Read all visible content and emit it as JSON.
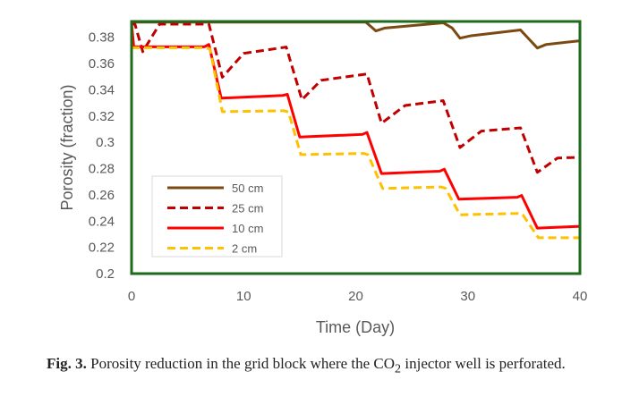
{
  "chart_data": {
    "type": "line",
    "xlabel": "Time (Day)",
    "ylabel": "Porosity (fraction)",
    "xlim": [
      0,
      40
    ],
    "ylim": [
      0.2,
      0.392
    ],
    "x_ticks": [
      "0",
      "10",
      "20",
      "30",
      "40"
    ],
    "y_ticks": [
      "0.2",
      "0.22",
      "0.24",
      "0.26",
      "0.28",
      "0.3",
      "0.32",
      "0.34",
      "0.36",
      "0.38"
    ],
    "grid": false,
    "legend_position": "bottom-left",
    "series": [
      {
        "name": "50 cm",
        "color": "#7b4a12",
        "dash": false,
        "x": [
          0,
          20.9,
          21.8,
          22.6,
          27.8,
          28.6,
          29.3,
          30.2,
          34.7,
          35.3,
          36.2,
          37.0,
          40
        ],
        "y": [
          0.3916,
          0.3916,
          0.3848,
          0.387,
          0.391,
          0.387,
          0.3793,
          0.381,
          0.3855,
          0.38,
          0.3718,
          0.3745,
          0.3773
        ]
      },
      {
        "name": "25 cm",
        "color": "#c00000",
        "dash": true,
        "x": [
          0,
          0.3,
          1.0,
          2.5,
          6.9,
          8.1,
          10.0,
          13.8,
          15.2,
          16.9,
          21.0,
          22.3,
          24.4,
          27.8,
          29.3,
          31.2,
          34.7,
          36.2,
          38.0,
          40
        ],
        "y": [
          0.39,
          0.39,
          0.369,
          0.39,
          0.39,
          0.3495,
          0.3677,
          0.3725,
          0.3324,
          0.3472,
          0.352,
          0.3145,
          0.328,
          0.3317,
          0.296,
          0.3085,
          0.311,
          0.2771,
          0.288,
          0.2886
        ]
      },
      {
        "name": "10 cm",
        "color": "#ff0000",
        "dash": false,
        "x": [
          0,
          0.2,
          6.5,
          6.9,
          8.0,
          13.5,
          13.9,
          15.0,
          20.6,
          21.0,
          22.3,
          27.5,
          27.9,
          29.2,
          34.4,
          34.8,
          36.2,
          40
        ],
        "y": [
          0.39,
          0.3727,
          0.3727,
          0.3745,
          0.3336,
          0.3357,
          0.3365,
          0.304,
          0.306,
          0.3075,
          0.2762,
          0.278,
          0.2795,
          0.2567,
          0.2581,
          0.2595,
          0.2346,
          0.236
        ]
      },
      {
        "name": "2 cm",
        "color": "#ffc000",
        "dash": true,
        "x": [
          0,
          6.6,
          7.0,
          8.1,
          13.6,
          14.0,
          15.1,
          20.7,
          21.1,
          22.4,
          27.6,
          28.0,
          29.3,
          34.5,
          34.9,
          36.3,
          40
        ],
        "y": [
          0.372,
          0.372,
          0.371,
          0.3233,
          0.324,
          0.323,
          0.2906,
          0.2915,
          0.2905,
          0.2648,
          0.266,
          0.265,
          0.2448,
          0.2458,
          0.2448,
          0.2273,
          0.2273
        ]
      }
    ]
  },
  "caption": {
    "label": "Fig. 3.",
    "text_before": " Porosity reduction in the grid block where the CO",
    "subscript": "2",
    "text_after": " injector well is perforated."
  }
}
